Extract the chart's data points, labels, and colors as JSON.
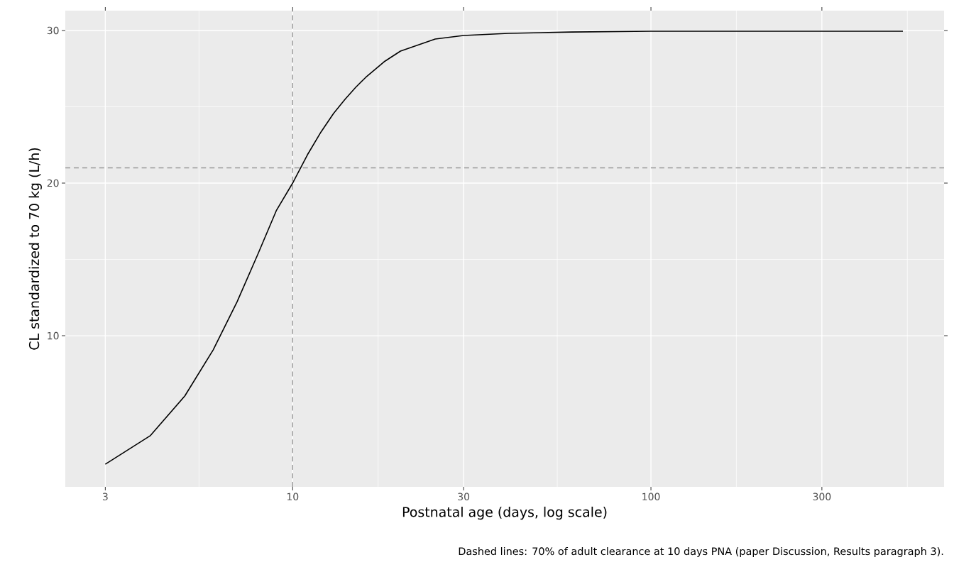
{
  "chart_data": {
    "type": "line",
    "xlabel": "Postnatal age (days, log scale)",
    "ylabel": "CL standardized to 70 kg (L/h)",
    "annotations": [
      "Dashed lines: 70% of adult clearance at 10 days PNA (paper Discussion, Results paragraph 3)."
    ],
    "log": "x",
    "grid": true,
    "xlim": [
      2.32,
      658
    ],
    "xticks": [
      3,
      10,
      30,
      100,
      300
    ],
    "ylim": [
      0.1,
      31.3
    ],
    "yticks": [
      10,
      20,
      30
    ],
    "ref_lines": [
      {
        "axis": "y",
        "value": 21,
        "color": "#999999",
        "line_style": "dashed"
      },
      {
        "axis": "x",
        "value": 10,
        "color": "#999999",
        "line_style": "dashed"
      }
    ],
    "series": [
      {
        "color": "#000000",
        "x": [
          3,
          4,
          5,
          6,
          7,
          8,
          9,
          10,
          11,
          12,
          13,
          14,
          15,
          16,
          18,
          20,
          25,
          30,
          40,
          60,
          100,
          505
        ],
        "values": [
          1.58,
          3.44,
          6.05,
          9.07,
          12.23,
          15.35,
          18.19,
          20,
          21.86,
          23.35,
          24.56,
          25.49,
          26.28,
          26.93,
          27.95,
          28.65,
          29.44,
          29.67,
          29.81,
          29.9,
          29.95,
          29.95
        ]
      }
    ]
  }
}
